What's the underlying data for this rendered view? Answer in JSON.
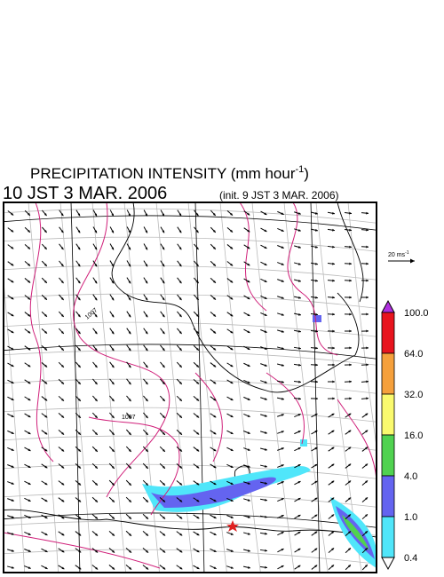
{
  "header": {
    "title": "PRECIPITATION INTENSITY (mm hour",
    "title_sup": "-1",
    "title_end": ")",
    "valid_time": "10 JST 3 MAR. 2006",
    "init_time": "(init. 9 JST 3 MAR. 2006)"
  },
  "vector_legend": {
    "label": "20 ms",
    "sup": "-1"
  },
  "isobar_labels": [
    "1007",
    "1007"
  ],
  "colorbar": {
    "over_color": "#b030e0",
    "under_color": "#ffffff",
    "labels": [
      "100.0",
      "64.0",
      "32.0",
      "16.0",
      "4.0",
      "1.0",
      "0.4"
    ],
    "colors": [
      "#e8141e",
      "#f5a03c",
      "#fafa6e",
      "#50d250",
      "#6464f0",
      "#50e6fa"
    ]
  }
}
